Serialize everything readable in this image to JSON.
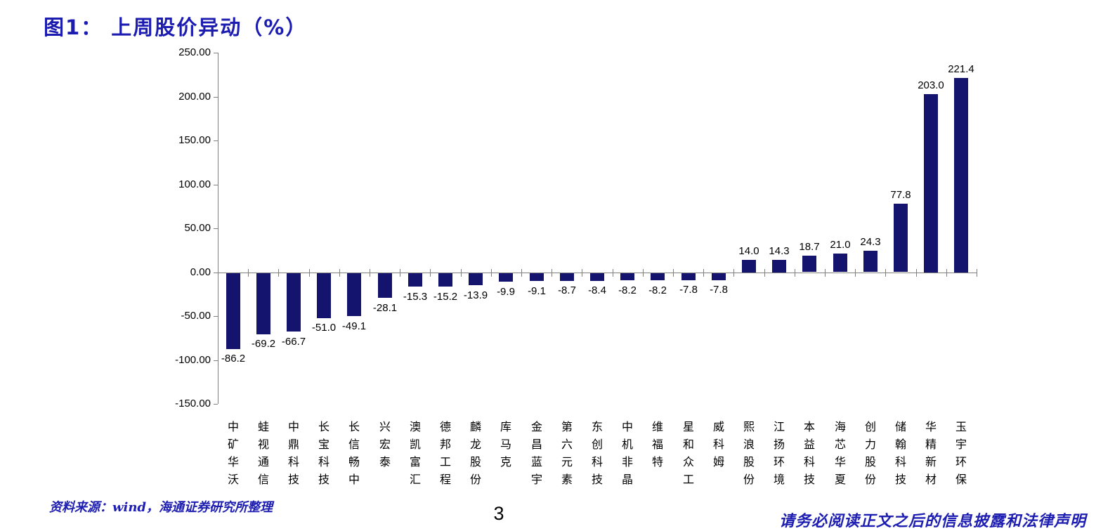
{
  "header": {
    "title": "图1： 上周股价异动（%）"
  },
  "chart_data": {
    "type": "bar",
    "title": "上周股价异动（%）",
    "categories": [
      "中矿华沃",
      "蛙视通信",
      "中鼎科技",
      "长宝科技",
      "长信畅中",
      "兴宏泰",
      "澳凯富汇",
      "德邦工程",
      "麟龙股份",
      "库马克",
      "金昌蓝宇",
      "第六元素",
      "东创科技",
      "中机非晶",
      "维福特",
      "星和众工",
      "威科姆",
      "熙浪股份",
      "江扬环境",
      "本益科技",
      "海芯华夏",
      "创力股份",
      "储翰科技",
      "华精新材",
      "玉宇环保"
    ],
    "values": [
      -86.2,
      -69.2,
      -66.7,
      -51.0,
      -49.1,
      -28.1,
      -15.3,
      -15.2,
      -13.9,
      -9.9,
      -9.1,
      -8.7,
      -8.4,
      -8.2,
      -8.2,
      -7.8,
      -7.8,
      14.0,
      14.3,
      18.7,
      21.0,
      24.3,
      77.8,
      203.0,
      221.4
    ],
    "value_labels": [
      "-86.2",
      "-69.2",
      "-66.7",
      "-51.0",
      "-49.1",
      "-28.1",
      "-15.3",
      "-15.2",
      "-13.9",
      "-9.9",
      "-9.1",
      "-8.7",
      "-8.4",
      "-8.2",
      "-8.2",
      "-7.8",
      "-7.8",
      "14.0",
      "14.3",
      "18.7",
      "21.0",
      "24.3",
      "77.8",
      "203.0",
      "221.4"
    ],
    "xlabel": "",
    "ylabel": "",
    "y_ticks": [
      250,
      200,
      150,
      100,
      50,
      0,
      -50,
      -100,
      -150
    ],
    "y_tick_labels": [
      "250.00",
      "200.00",
      "150.00",
      "100.00",
      "50.00",
      "0.00",
      "-50.00",
      "-100.00",
      "-150.00"
    ],
    "ylim": [
      -150,
      250
    ],
    "grid": false,
    "legend": false,
    "bar_color": "#14146e",
    "axis_color": "#808080"
  },
  "footer": {
    "source": "资料来源：wind，海通证券研究所整理",
    "page_number": "3",
    "disclaimer": "请务必阅读正文之后的信息披露和法律声明"
  }
}
